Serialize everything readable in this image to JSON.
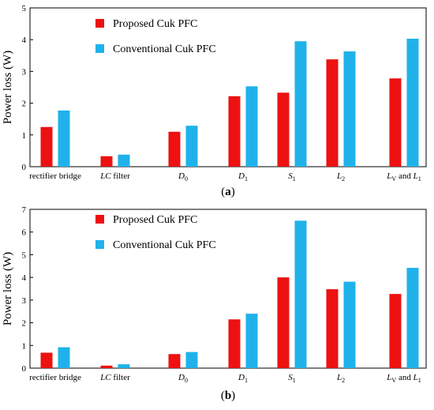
{
  "chart_data": [
    {
      "type": "bar",
      "panel_label": "(a)",
      "categories": [
        "rectifier bridge",
        "LC filter",
        "D0",
        "D1",
        "S1",
        "L2",
        "LV and L1"
      ],
      "category_labels": [
        [
          {
            "t": "rectifier bridge"
          }
        ],
        [
          {
            "t": "LC",
            "i": true
          },
          {
            "t": " filter"
          }
        ],
        [
          {
            "t": "D",
            "i": true
          },
          {
            "t": "0",
            "s": true
          }
        ],
        [
          {
            "t": "D",
            "i": true
          },
          {
            "t": "1",
            "s": true
          }
        ],
        [
          {
            "t": "S",
            "i": true
          },
          {
            "t": "1",
            "s": true
          }
        ],
        [
          {
            "t": "L",
            "i": true
          },
          {
            "t": "2",
            "s": true
          }
        ],
        [
          {
            "t": "L",
            "i": true
          },
          {
            "t": "V",
            "s": true
          },
          {
            "t": " and "
          },
          {
            "t": "L",
            "i": true
          },
          {
            "t": "1",
            "s": true
          }
        ]
      ],
      "series": [
        {
          "name": "Proposed Cuk PFC",
          "color": "#ee1111",
          "values": [
            1.25,
            0.33,
            1.1,
            2.22,
            2.33,
            3.38,
            2.78
          ]
        },
        {
          "name": "Conventional Cuk PFC",
          "color": "#1fb2ea",
          "values": [
            1.77,
            0.38,
            1.29,
            2.53,
            3.95,
            3.63,
            4.03
          ]
        }
      ],
      "ylabel": "Power loss (W)",
      "ylim": [
        0,
        5
      ],
      "yticks": [
        0,
        1,
        2,
        3,
        4,
        5
      ],
      "grid": false,
      "legend": "top-left"
    },
    {
      "type": "bar",
      "panel_label": "(b)",
      "categories": [
        "rectifier bridge",
        "LC filter",
        "D0",
        "D1",
        "S1",
        "L2",
        "LV and L1"
      ],
      "category_labels": [
        [
          {
            "t": "rectifier bridge"
          }
        ],
        [
          {
            "t": "LC",
            "i": true
          },
          {
            "t": " filter"
          }
        ],
        [
          {
            "t": "D",
            "i": true
          },
          {
            "t": "0",
            "s": true
          }
        ],
        [
          {
            "t": "D",
            "i": true
          },
          {
            "t": "1",
            "s": true
          }
        ],
        [
          {
            "t": "S",
            "i": true
          },
          {
            "t": "1",
            "s": true
          }
        ],
        [
          {
            "t": "L",
            "i": true
          },
          {
            "t": "2",
            "s": true
          }
        ],
        [
          {
            "t": "L",
            "i": true
          },
          {
            "t": "V",
            "s": true
          },
          {
            "t": " and "
          },
          {
            "t": "L",
            "i": true
          },
          {
            "t": "1",
            "s": true
          }
        ]
      ],
      "series": [
        {
          "name": "Proposed Cuk PFC",
          "color": "#ee1111",
          "values": [
            0.68,
            0.11,
            0.62,
            2.15,
            4.0,
            3.48,
            3.27
          ]
        },
        {
          "name": "Conventional Cuk PFC",
          "color": "#1fb2ea",
          "values": [
            0.92,
            0.17,
            0.71,
            2.4,
            6.5,
            3.81,
            4.42
          ]
        }
      ],
      "ylabel": "Power loss (W)",
      "ylim": [
        0,
        7
      ],
      "yticks": [
        0,
        1,
        2,
        3,
        4,
        5,
        6,
        7
      ],
      "grid": false,
      "legend": "top-left"
    }
  ]
}
